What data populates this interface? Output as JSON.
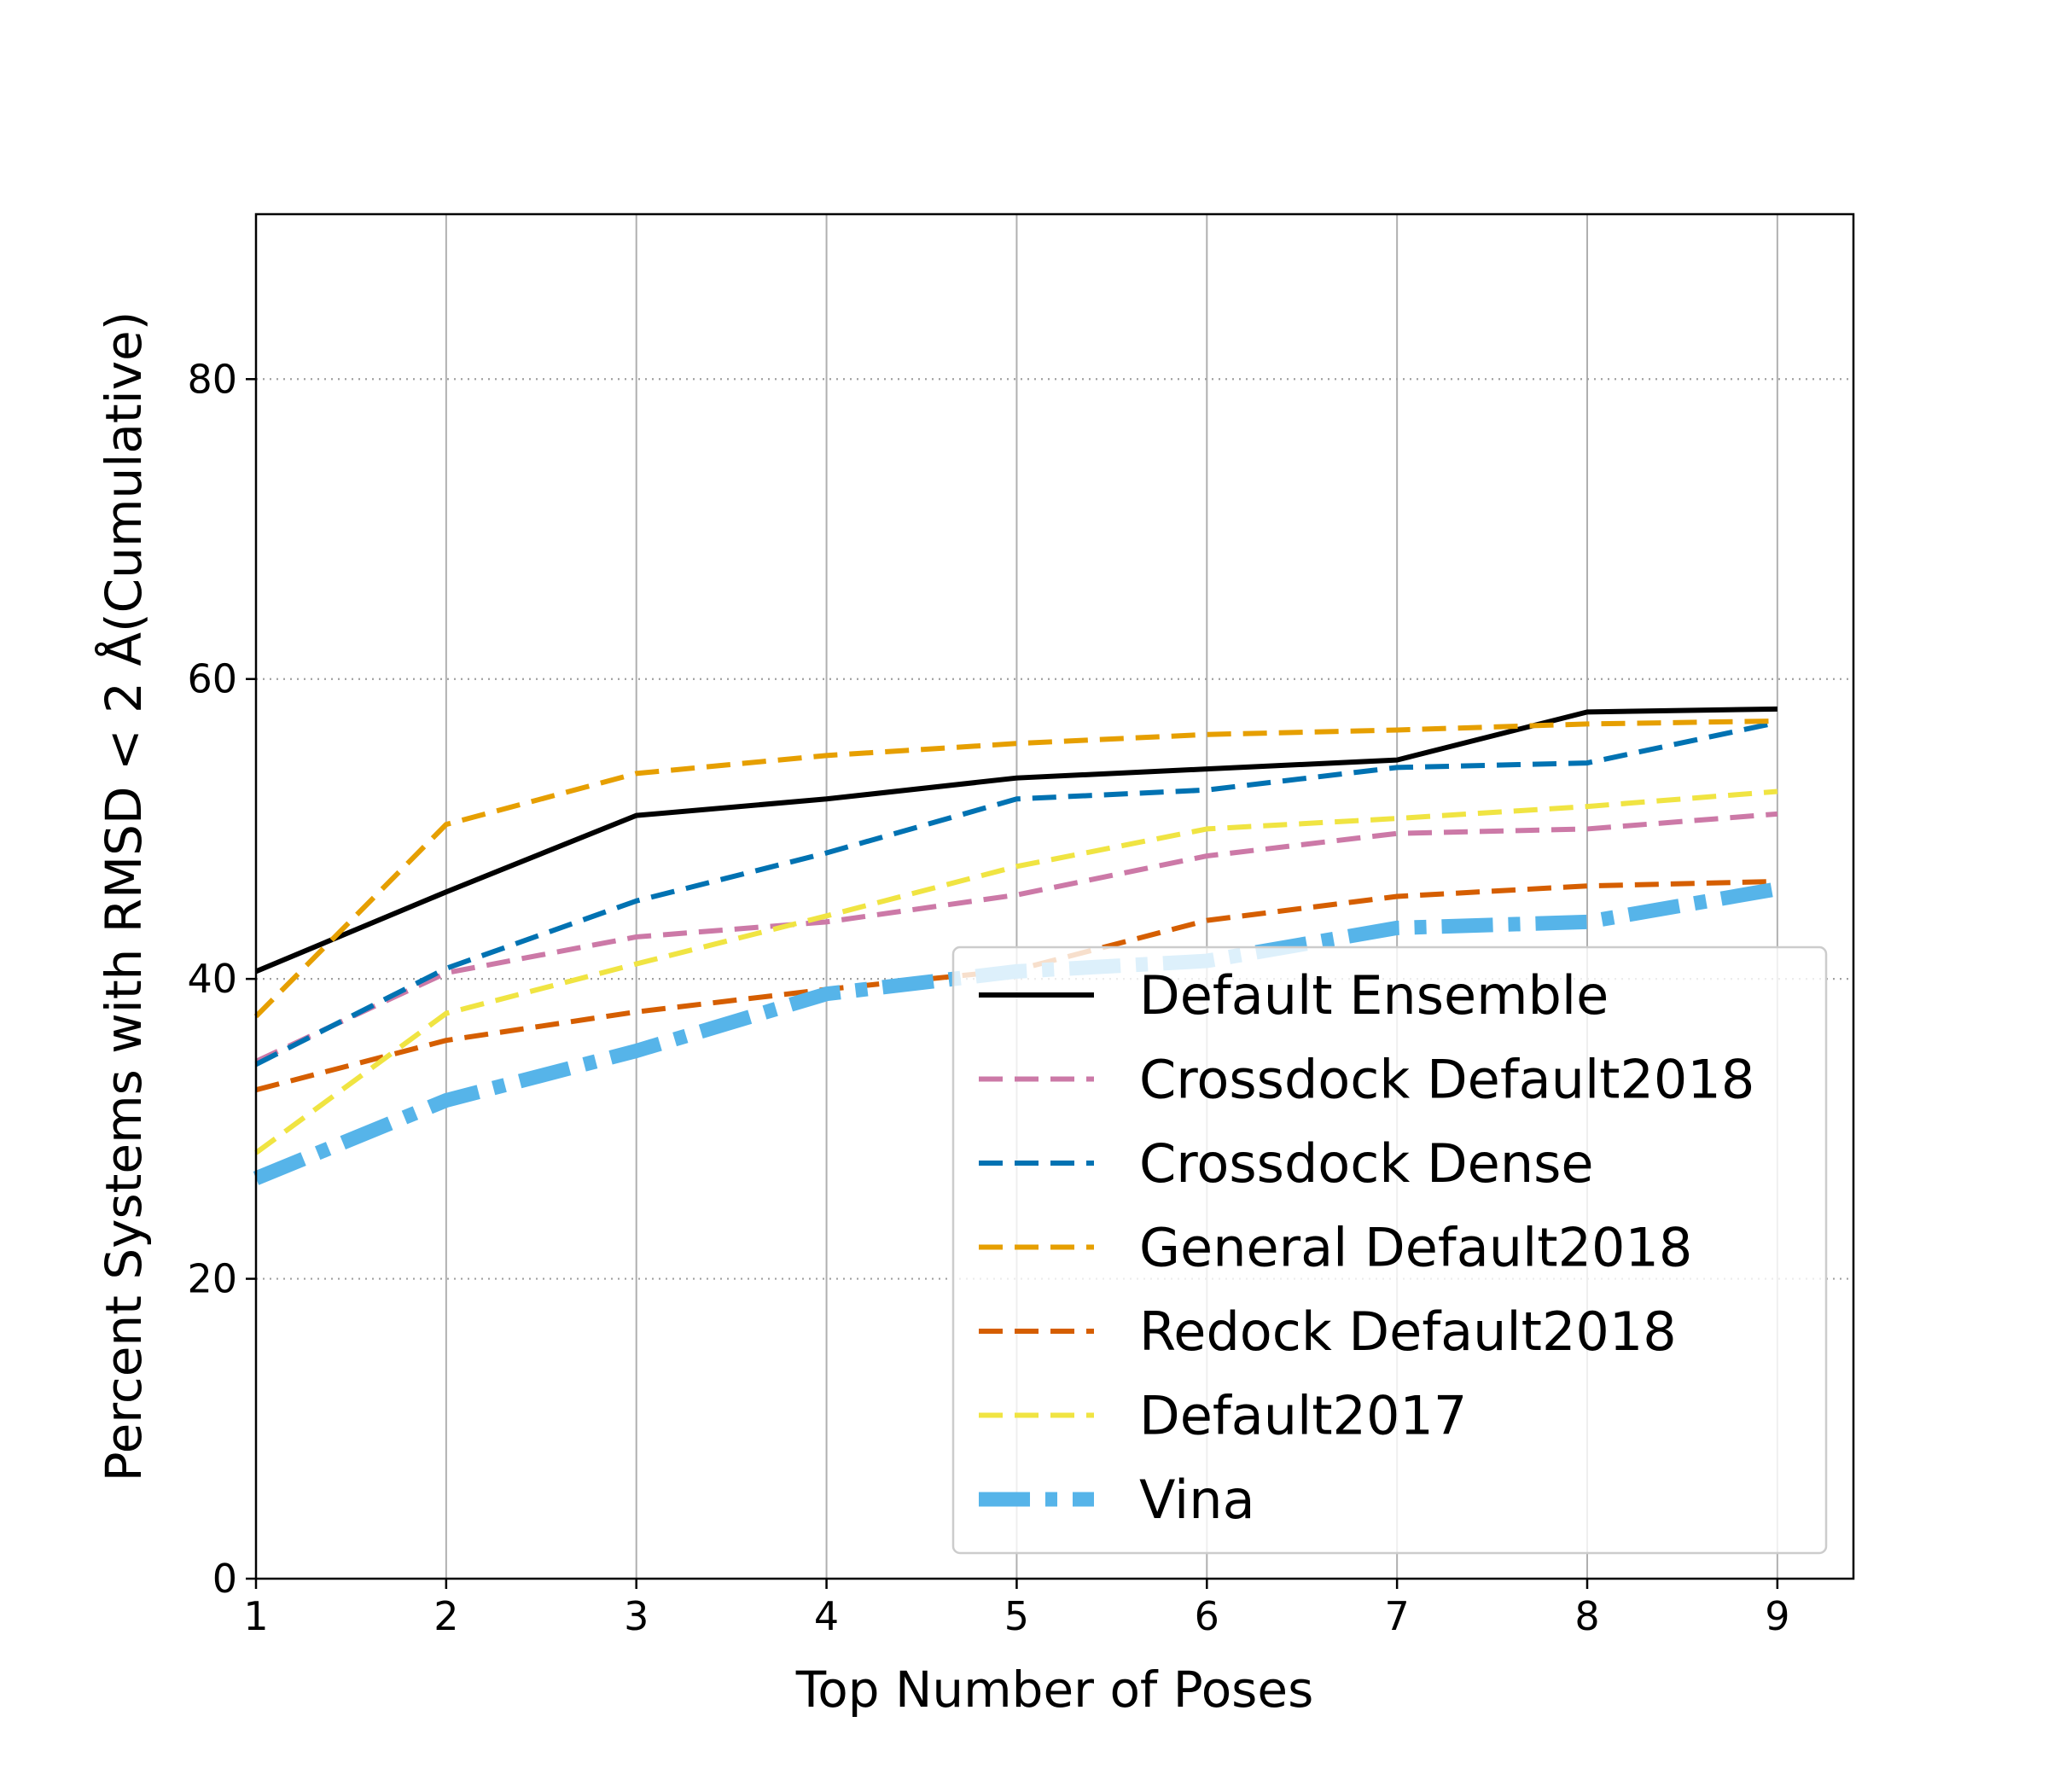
{
  "chart_data": {
    "type": "line",
    "title": "",
    "xlabel": "Top Number of Poses",
    "ylabel": "Percent Systems with RMSD < 2 Å(Cumulative)",
    "x": [
      1,
      2,
      3,
      4,
      5,
      6,
      7,
      8,
      9
    ],
    "xlim": [
      1,
      9.4
    ],
    "ylim": [
      0,
      91
    ],
    "xticks": [
      "1",
      "2",
      "3",
      "4",
      "5",
      "6",
      "7",
      "8",
      "9"
    ],
    "yticks": [
      "0",
      "20",
      "40",
      "60",
      "80"
    ],
    "grid": "x: solid vertical lines; y: dotted horizontal lines",
    "legend_position": "lower-right",
    "series": [
      {
        "name": "Default Ensemble",
        "color": "#000000",
        "style": "solid",
        "values": [
          40.5,
          45.8,
          50.9,
          52.0,
          53.4,
          54.0,
          54.6,
          57.8,
          58.0
        ]
      },
      {
        "name": "Crossdock Default2018",
        "color": "#cc79a7",
        "style": "dashed",
        "values": [
          34.5,
          40.4,
          42.8,
          43.8,
          45.6,
          48.2,
          49.7,
          50.0,
          51.0
        ]
      },
      {
        "name": "Crossdock Dense",
        "color": "#0072b2",
        "style": "dashed",
        "values": [
          34.3,
          40.7,
          45.2,
          48.4,
          52.0,
          52.6,
          54.1,
          54.4,
          57.1
        ]
      },
      {
        "name": "General Default2018",
        "color": "#e69f00",
        "style": "dashed",
        "values": [
          37.5,
          50.3,
          53.7,
          54.9,
          55.7,
          56.3,
          56.6,
          57.0,
          57.2
        ]
      },
      {
        "name": "Redock Default2018",
        "color": "#d55e00",
        "style": "dashed",
        "values": [
          32.6,
          35.9,
          37.8,
          39.3,
          40.6,
          43.9,
          45.5,
          46.2,
          46.5
        ]
      },
      {
        "name": "Default2017",
        "color": "#f0e442",
        "style": "dashed",
        "values": [
          28.4,
          37.7,
          41.0,
          44.2,
          47.5,
          50.0,
          50.7,
          51.5,
          52.5
        ]
      },
      {
        "name": "Vina",
        "color": "#56b4e9",
        "style": "dashdot",
        "values": [
          26.7,
          31.9,
          35.2,
          39.0,
          40.5,
          41.2,
          43.4,
          43.8,
          46.0
        ]
      }
    ]
  }
}
